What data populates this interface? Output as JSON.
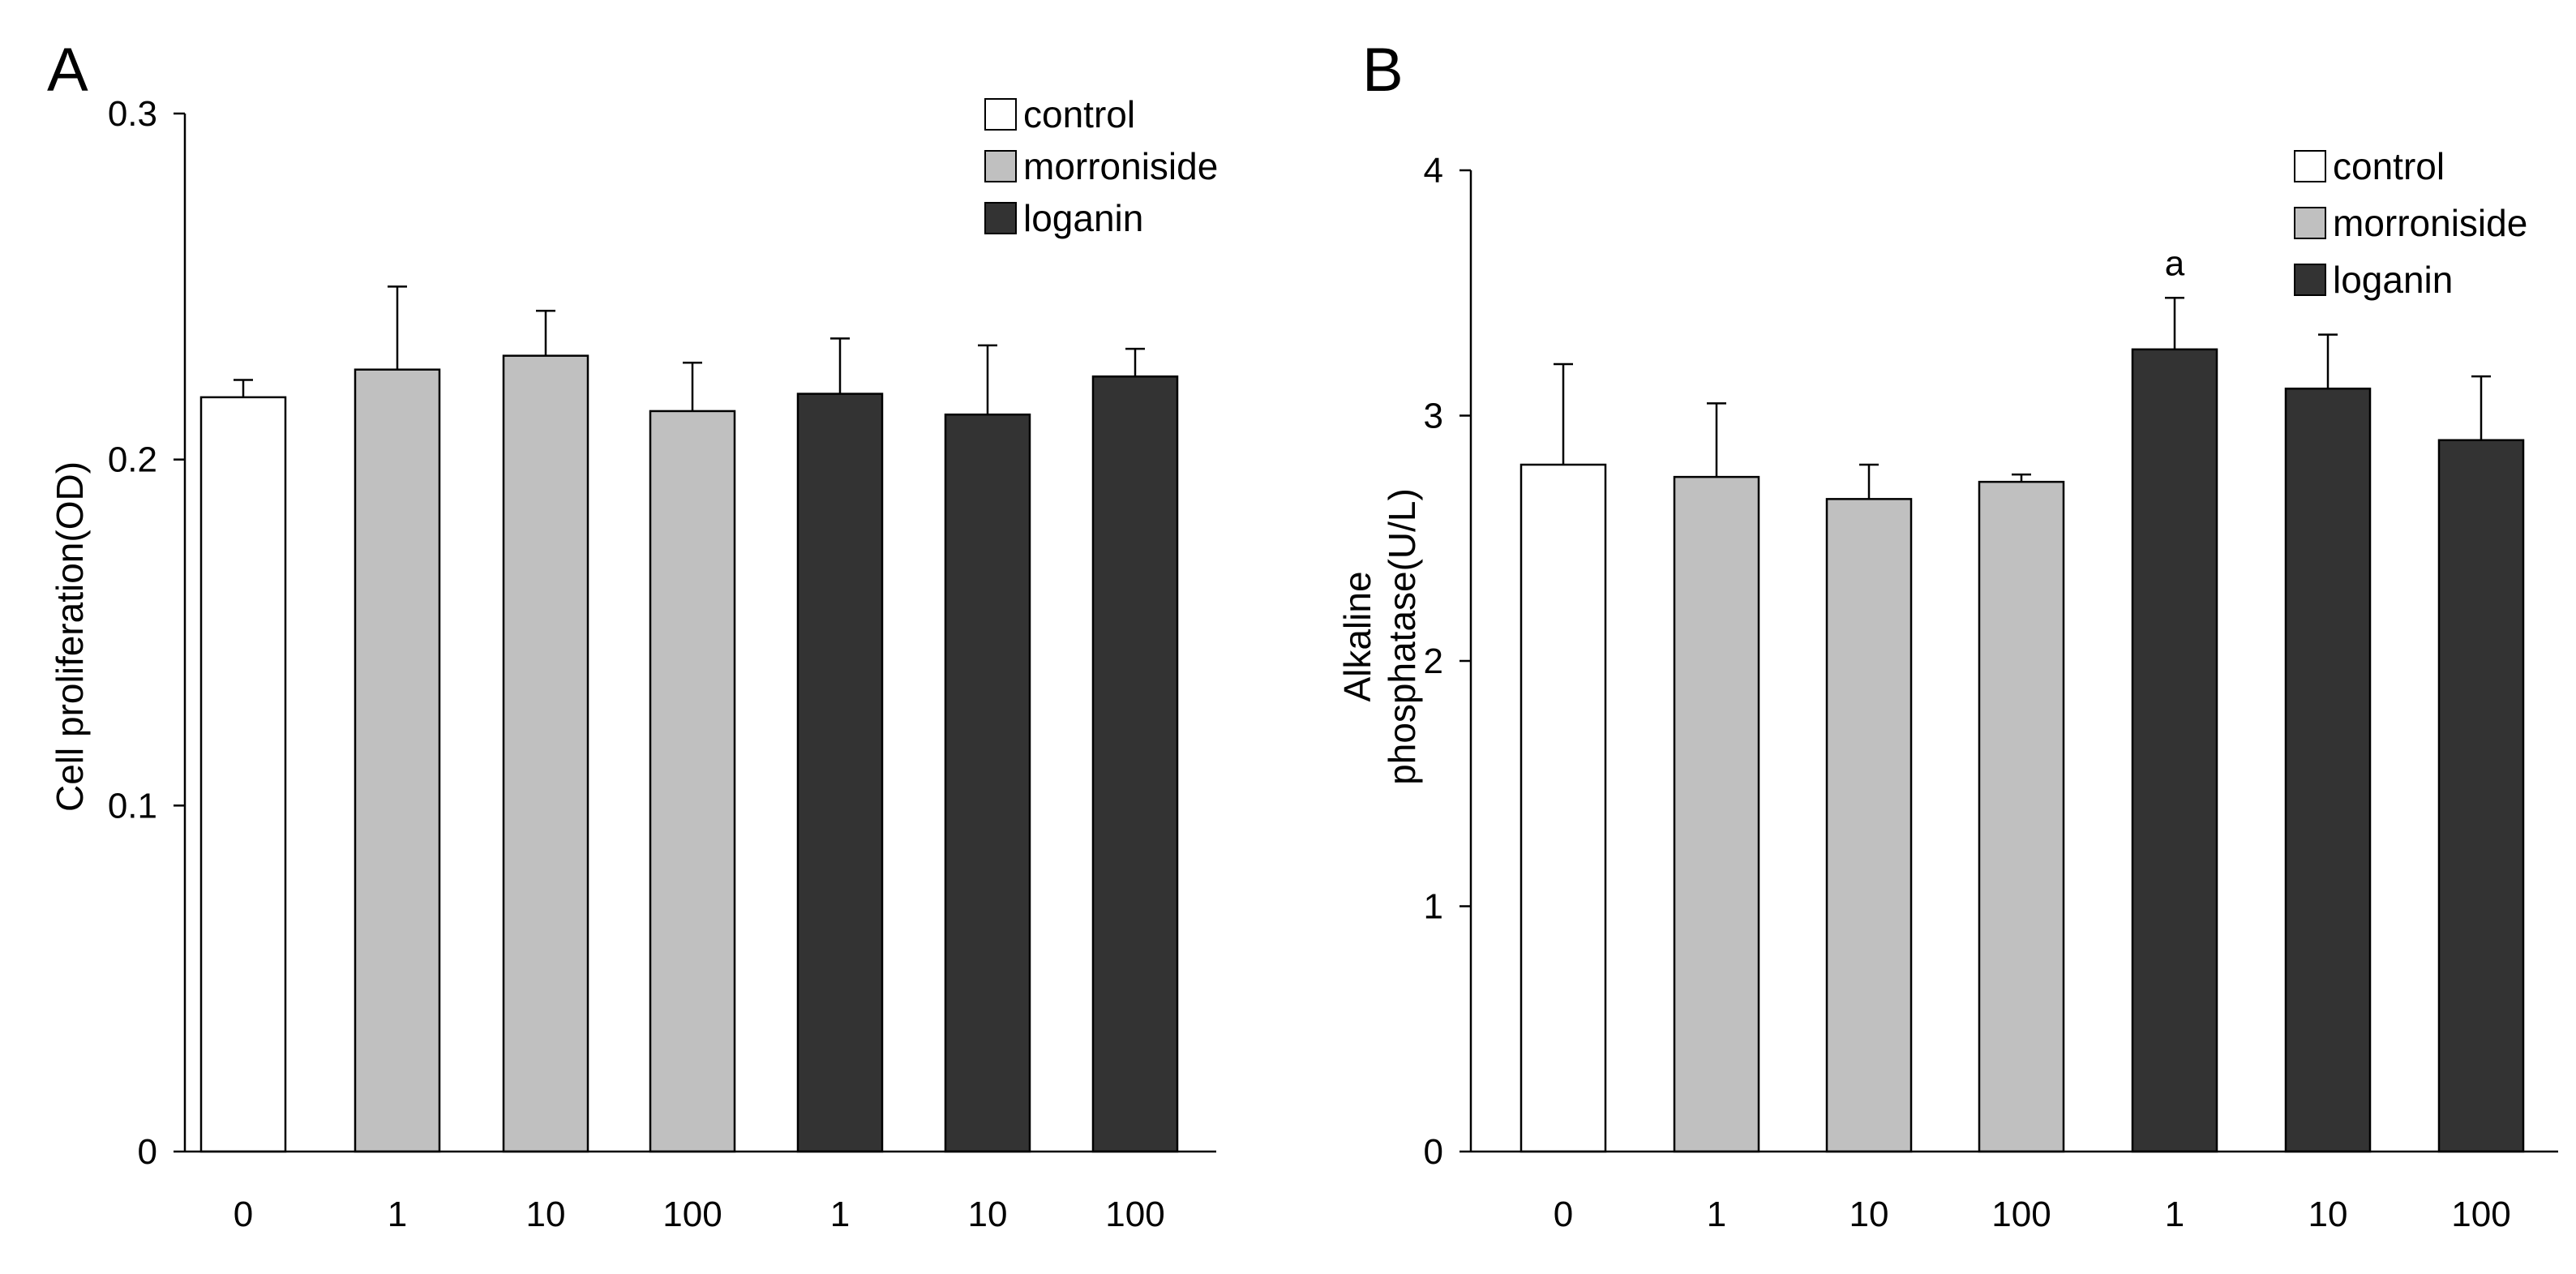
{
  "chart_data": [
    {
      "panel": "A",
      "type": "bar",
      "title": "",
      "xlabel": "",
      "ylabel": "Cell proliferation(OD)",
      "ylim": [
        0,
        0.3
      ],
      "yticks": [
        "0",
        "0.1",
        "0.2",
        "0.3"
      ],
      "ytick_values": [
        0,
        0.1,
        0.2,
        0.3
      ],
      "categories": [
        "0",
        "1",
        "10",
        "100",
        "1",
        "10",
        "100"
      ],
      "groups": [
        "control",
        "morroniside",
        "morroniside",
        "morroniside",
        "loganin",
        "loganin",
        "loganin"
      ],
      "values": [
        0.218,
        0.226,
        0.23,
        0.214,
        0.219,
        0.213,
        0.224
      ],
      "errors": [
        0.005,
        0.024,
        0.013,
        0.014,
        0.016,
        0.02,
        0.008
      ],
      "annotations": [
        "",
        "",
        "",
        "",
        "",
        "",
        ""
      ],
      "legend": [
        {
          "label": "control",
          "color": "#ffffff"
        },
        {
          "label": "morroniside",
          "color": "#c0c0c0"
        },
        {
          "label": "loganin",
          "color": "#333333"
        }
      ],
      "legend_position": "top-right"
    },
    {
      "panel": "B",
      "type": "bar",
      "title": "",
      "xlabel": "",
      "ylabel_lines": [
        "Alkaline",
        "phosphatase(U/L)"
      ],
      "ylim": [
        0,
        4
      ],
      "yticks": [
        "0",
        "1",
        "2",
        "3",
        "4"
      ],
      "ytick_values": [
        0,
        1,
        2,
        3,
        4
      ],
      "categories": [
        "0",
        "1",
        "10",
        "100",
        "1",
        "10",
        "100"
      ],
      "groups": [
        "control",
        "morroniside",
        "morroniside",
        "morroniside",
        "loganin",
        "loganin",
        "loganin"
      ],
      "values": [
        2.8,
        2.75,
        2.66,
        2.73,
        3.27,
        3.11,
        2.9
      ],
      "errors": [
        0.41,
        0.3,
        0.14,
        0.03,
        0.21,
        0.22,
        0.26
      ],
      "annotations": [
        "",
        "",
        "",
        "",
        "a",
        "",
        ""
      ],
      "legend": [
        {
          "label": "control",
          "color": "#ffffff"
        },
        {
          "label": "morroniside",
          "color": "#c0c0c0"
        },
        {
          "label": "loganin",
          "color": "#333333"
        }
      ],
      "legend_position": "top-right"
    }
  ],
  "colors": {
    "control": "#ffffff",
    "morroniside": "#c0c0c0",
    "loganin": "#333333",
    "axis": "#000000"
  }
}
